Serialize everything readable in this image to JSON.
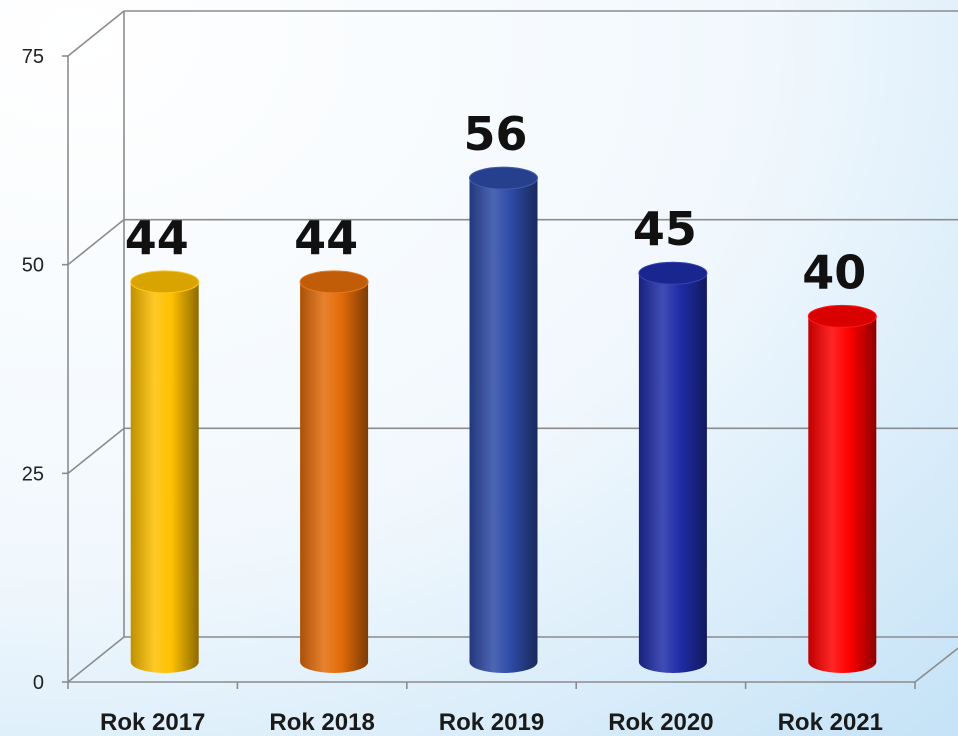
{
  "chart_data": {
    "type": "bar",
    "categories": [
      "Rok 2017",
      "Rok 2018",
      "Rok 2019",
      "Rok 2020",
      "Rok 2021"
    ],
    "values": [
      44,
      44,
      56,
      45,
      40
    ],
    "data_labels": [
      "44",
      "44",
      "56",
      "45",
      "40"
    ],
    "ylim": [
      0,
      75
    ],
    "yticks": [
      "0",
      "25",
      "50",
      "75"
    ],
    "grid": true,
    "style": "3d-cylinder",
    "colors": [
      "#FFC000",
      "#E36C09",
      "#2E4BA6",
      "#1F2DA8",
      "#FF0000"
    ]
  }
}
